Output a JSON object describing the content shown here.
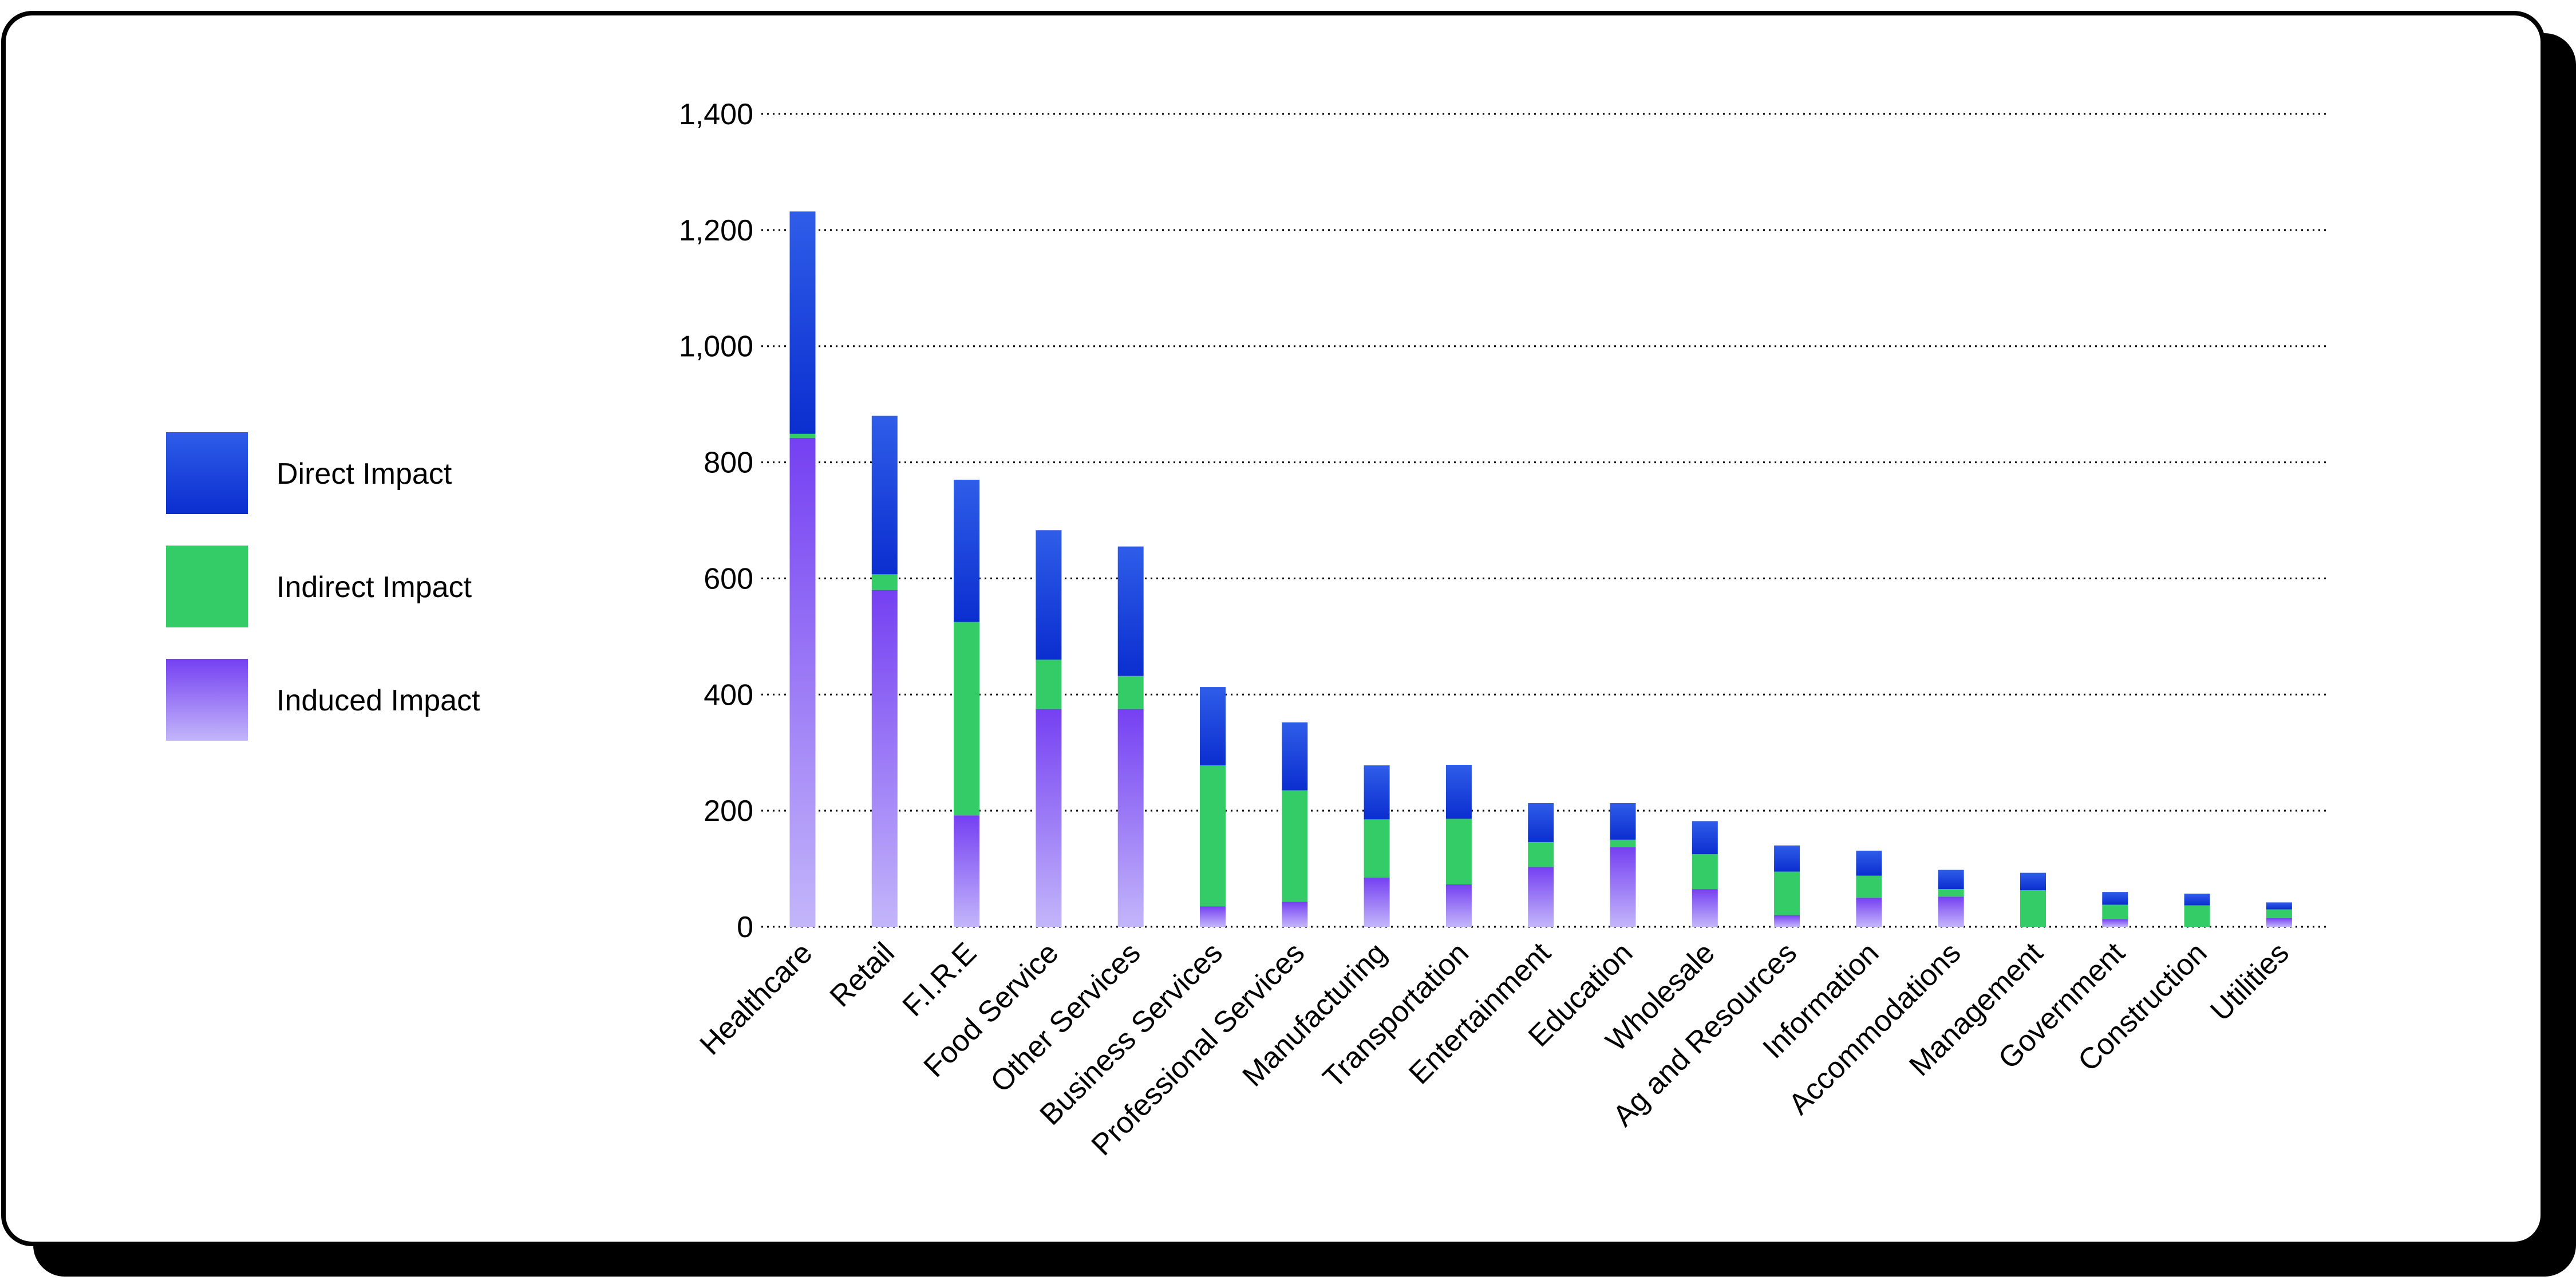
{
  "chart_data": {
    "type": "bar",
    "stacked": true,
    "title": "",
    "xlabel": "",
    "ylabel": "",
    "ylim": [
      0,
      1400
    ],
    "yticks": [
      0,
      200,
      400,
      600,
      800,
      1000,
      1200,
      1400
    ],
    "ytick_labels": [
      "0",
      "200",
      "400",
      "600",
      "800",
      "1,000",
      "1,200",
      "1,400"
    ],
    "grid": true,
    "legend_position": "left",
    "categories": [
      "Healthcare",
      "Retail",
      "F.I.R.E",
      "Food Service",
      "Other Services",
      "Business Services",
      "Professional Services",
      "Manufacturing",
      "Transportation",
      "Entertainment",
      "Education",
      "Wholesale",
      "Ag and Resources",
      "Information",
      "Accommodations",
      "Management",
      "Government",
      "Construction",
      "Utilities"
    ],
    "series": [
      {
        "name": "Induced Impact",
        "values": [
          842,
          580,
          192,
          375,
          375,
          35,
          43,
          85,
          73,
          103,
          137,
          65,
          20,
          50,
          52,
          0,
          13,
          0,
          15
        ]
      },
      {
        "name": "Indirect Impact",
        "values": [
          7,
          27,
          333,
          85,
          57,
          243,
          192,
          100,
          113,
          43,
          13,
          60,
          75,
          38,
          13,
          63,
          25,
          37,
          15
        ]
      },
      {
        "name": "Direct Impact",
        "values": [
          383,
          273,
          245,
          223,
          223,
          135,
          117,
          93,
          93,
          67,
          63,
          57,
          45,
          43,
          33,
          30,
          22,
          20,
          12
        ]
      }
    ],
    "colors": {
      "direct_top": "#2f5de8",
      "direct_bottom": "#0b2ed0",
      "indirect": "#33cc66",
      "induced_top": "#7540f2",
      "induced_bottom": "#c3b6fa"
    }
  },
  "legend": {
    "items": [
      {
        "label": "Direct Impact",
        "key": "direct"
      },
      {
        "label": "Indirect Impact",
        "key": "indirect"
      },
      {
        "label": "Induced Impact",
        "key": "induced"
      }
    ]
  }
}
